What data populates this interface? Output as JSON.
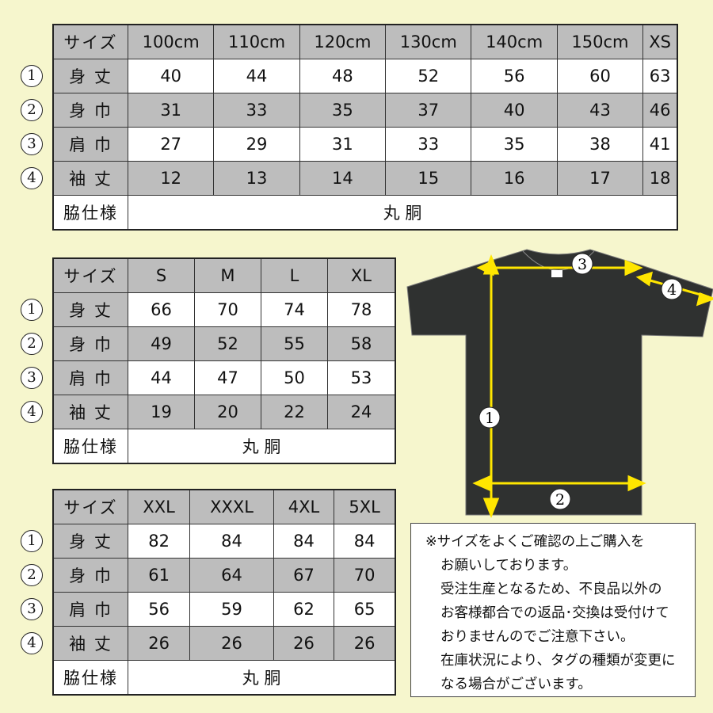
{
  "colors": {
    "background": "#f6f6cd",
    "header_gray": "#bdbdbd",
    "shirt": "#2f3130",
    "arrow": "#ffe600"
  },
  "row_markers": [
    "1",
    "2",
    "3",
    "4"
  ],
  "tables": [
    {
      "header_label": "サイズ",
      "sizes": [
        "100cm",
        "110cm",
        "120cm",
        "130cm",
        "140cm",
        "150cm",
        "XS"
      ],
      "rows": [
        {
          "label": "身 丈",
          "values": [
            "40",
            "44",
            "48",
            "52",
            "56",
            "60",
            "63"
          ]
        },
        {
          "label": "身 巾",
          "values": [
            "31",
            "33",
            "35",
            "37",
            "40",
            "43",
            "46"
          ]
        },
        {
          "label": "肩 巾",
          "values": [
            "27",
            "29",
            "31",
            "33",
            "35",
            "38",
            "41"
          ]
        },
        {
          "label": "袖 丈",
          "values": [
            "12",
            "13",
            "14",
            "15",
            "16",
            "17",
            "18"
          ]
        }
      ],
      "side_label": "脇仕様",
      "side_value": "丸 胴"
    },
    {
      "header_label": "サイズ",
      "sizes": [
        "S",
        "M",
        "L",
        "XL"
      ],
      "rows": [
        {
          "label": "身 丈",
          "values": [
            "66",
            "70",
            "74",
            "78"
          ]
        },
        {
          "label": "身 巾",
          "values": [
            "49",
            "52",
            "55",
            "58"
          ]
        },
        {
          "label": "肩 巾",
          "values": [
            "44",
            "47",
            "50",
            "53"
          ]
        },
        {
          "label": "袖 丈",
          "values": [
            "19",
            "20",
            "22",
            "24"
          ]
        }
      ],
      "side_label": "脇仕様",
      "side_value": "丸 胴"
    },
    {
      "header_label": "サイズ",
      "sizes": [
        "XXL",
        "XXXL",
        "4XL",
        "5XL"
      ],
      "rows": [
        {
          "label": "身 丈",
          "values": [
            "82",
            "84",
            "84",
            "84"
          ]
        },
        {
          "label": "身 巾",
          "values": [
            "61",
            "64",
            "67",
            "70"
          ]
        },
        {
          "label": "肩 巾",
          "values": [
            "56",
            "59",
            "62",
            "65"
          ]
        },
        {
          "label": "袖 丈",
          "values": [
            "26",
            "26",
            "26",
            "26"
          ]
        }
      ],
      "side_label": "脇仕様",
      "side_value": "丸 胴"
    }
  ],
  "diagram": {
    "markers": [
      "1",
      "2",
      "3",
      "4"
    ]
  },
  "notes": [
    "※サイズをよくご確認の上ご購入を",
    "お願いしております。",
    "受注生産となるため、不良品以外の",
    "お客様都合での返品･交換は受付けて",
    "おりませんのでご注意下さい。",
    "在庫状況により、タグの種類が変更に",
    "なる場合がございます。"
  ]
}
